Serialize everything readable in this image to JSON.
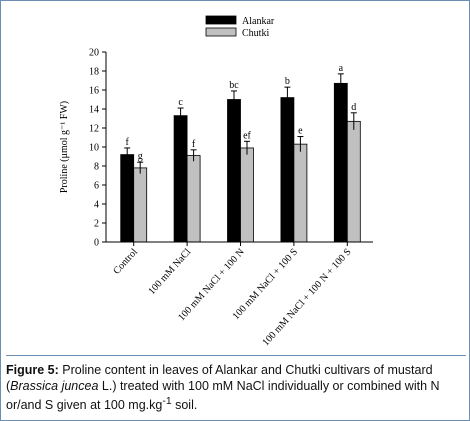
{
  "chart_data": {
    "type": "bar",
    "ylabel": "Proline (μmol g⁻¹ FW)",
    "ylim": [
      0,
      20
    ],
    "yticks": [
      0,
      2,
      4,
      6,
      8,
      10,
      12,
      14,
      16,
      18,
      20
    ],
    "categories": [
      "Control",
      "100 mM NaCl",
      "100 mM NaCl + 100 N",
      "100 mM NaCl + 100 S",
      "100 mM NaCl + 100 N + 100 S"
    ],
    "series": [
      {
        "name": "Alankar",
        "color": "#000000",
        "values": [
          9.2,
          13.3,
          15.0,
          15.2,
          16.7
        ],
        "errors": [
          0.7,
          0.8,
          0.9,
          1.1,
          1.0
        ],
        "letters": [
          "f",
          "c",
          "bc",
          "b",
          "a"
        ]
      },
      {
        "name": "Chutki",
        "color": "#c0c0c0",
        "values": [
          7.8,
          9.1,
          9.9,
          10.3,
          12.7
        ],
        "errors": [
          0.6,
          0.6,
          0.7,
          0.8,
          0.9
        ],
        "letters": [
          "g",
          "f",
          "ef",
          "e",
          "d"
        ]
      }
    ],
    "legend": "top-center"
  },
  "caption": {
    "label": "Figure 5:",
    "text_1": " Proline content in leaves of Alankar and Chutki cultivars of mustard (",
    "species": "Brassica juncea",
    "text_2": " L.) treated with 100 mM NaCl individually or combined with N or/and S given at 100 mg.kg",
    "sup": "-1",
    "text_3": " soil."
  }
}
